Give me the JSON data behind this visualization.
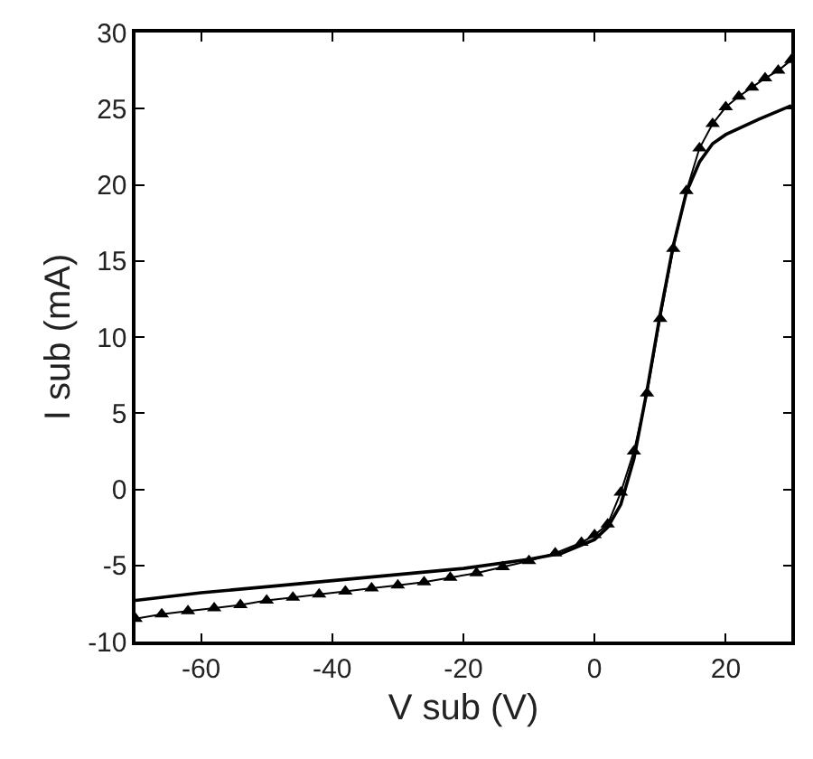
{
  "chart_data": {
    "type": "line",
    "xlabel": "V sub (V)",
    "ylabel": "I sub (mA)",
    "xlim": [
      -70,
      30
    ],
    "ylim": [
      -10,
      30
    ],
    "xticks": [
      -60,
      -40,
      -20,
      0,
      20
    ],
    "yticks": [
      -10,
      -5,
      0,
      5,
      10,
      15,
      20,
      25,
      30
    ],
    "grid": false,
    "series": [
      {
        "color": "#000000",
        "marker": "none",
        "x": [
          -70,
          -60,
          -50,
          -40,
          -30,
          -20,
          -10,
          -5,
          0,
          2,
          4,
          6,
          8,
          10,
          12,
          14,
          16,
          18,
          20,
          25,
          30
        ],
        "values": [
          -7.3,
          -6.8,
          -6.4,
          -6.0,
          -5.6,
          -5.2,
          -4.6,
          -4.2,
          -3.3,
          -2.5,
          -1.0,
          2.0,
          6.5,
          11.5,
          16.0,
          19.5,
          21.5,
          22.7,
          23.3,
          24.3,
          25.2
        ]
      },
      {
        "color": "#000000",
        "marker": "triangle",
        "x": [
          -70,
          -66,
          -62,
          -58,
          -54,
          -50,
          -46,
          -42,
          -38,
          -34,
          -30,
          -26,
          -22,
          -18,
          -14,
          -10,
          -6,
          -2,
          0,
          2,
          4,
          6,
          8,
          10,
          12,
          14,
          16,
          18,
          20,
          22,
          24,
          26,
          28,
          30
        ],
        "values": [
          -8.5,
          -8.2,
          -8.0,
          -7.8,
          -7.6,
          -7.3,
          -7.1,
          -6.9,
          -6.7,
          -6.5,
          -6.3,
          -6.1,
          -5.8,
          -5.5,
          -5.1,
          -4.7,
          -4.2,
          -3.5,
          -3.0,
          -2.3,
          -0.2,
          2.5,
          6.3,
          11.2,
          15.8,
          19.6,
          22.4,
          24.0,
          25.1,
          25.8,
          26.4,
          27.0,
          27.5,
          28.2
        ]
      }
    ]
  }
}
